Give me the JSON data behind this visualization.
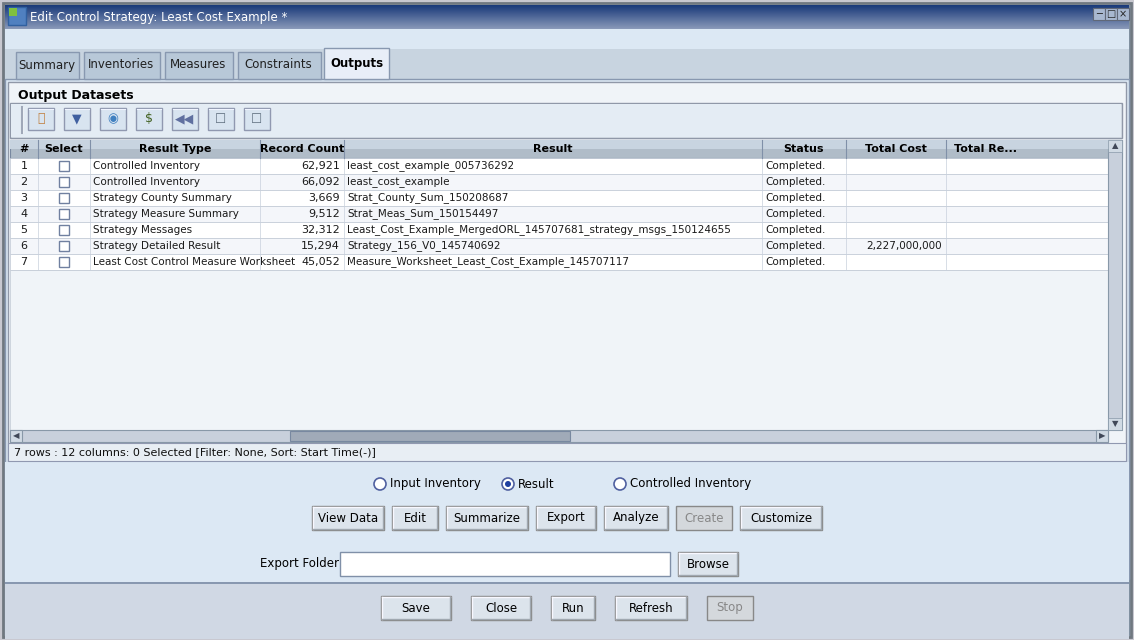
{
  "title_bar": "Edit Control Strategy: Least Cost Example *",
  "tabs": [
    "Summary",
    "Inventories",
    "Measures",
    "Constraints",
    "Outputs"
  ],
  "active_tab": "Outputs",
  "section_title": "Output Datasets",
  "table_headers": [
    "#",
    "Select",
    "Result Type",
    "Record Count",
    "Result",
    "Status",
    "Total Cost",
    "Total Re..."
  ],
  "table_rows": [
    [
      "1",
      "",
      "Controlled Inventory",
      "62,921",
      "least_cost_example_005736292",
      "Completed.",
      "",
      ""
    ],
    [
      "2",
      "",
      "Controlled Inventory",
      "66,092",
      "least_cost_example",
      "Completed.",
      "",
      ""
    ],
    [
      "3",
      "",
      "Strategy County Summary",
      "3,669",
      "Strat_County_Sum_150208687",
      "Completed.",
      "",
      ""
    ],
    [
      "4",
      "",
      "Strategy Measure Summary",
      "9,512",
      "Strat_Meas_Sum_150154497",
      "Completed.",
      "",
      ""
    ],
    [
      "5",
      "",
      "Strategy Messages",
      "32,312",
      "Least_Cost_Example_MergedORL_145707681_strategy_msgs_150124655",
      "Completed.",
      "",
      ""
    ],
    [
      "6",
      "",
      "Strategy Detailed Result",
      "15,294",
      "Strategy_156_V0_145740692",
      "Completed.",
      "2,227,000,000",
      ""
    ],
    [
      "7",
      "",
      "Least Cost Control Measure Worksheet",
      "45,052",
      "Measure_Worksheet_Least_Cost_Example_145707117",
      "Completed.",
      "",
      ""
    ]
  ],
  "status_bar": "7 rows : 12 columns: 0 Selected [Filter: None, Sort: Start Time(-)]",
  "radio_options": [
    "Input Inventory",
    "Result",
    "Controlled Inventory"
  ],
  "radio_selected": 1,
  "buttons_row1": [
    "View Data",
    "Edit",
    "Summarize",
    "Export",
    "Analyze",
    "Create",
    "Customize"
  ],
  "buttons_disabled": [
    "Create"
  ],
  "export_folder_label": "Export Folder:",
  "buttons_row2": [
    "Save",
    "Close",
    "Run",
    "Refresh",
    "Stop"
  ],
  "buttons_row2_disabled": [
    "Stop"
  ],
  "outer_bg": "#c8c8d0",
  "win_bg": "#e8e8f0",
  "title_bg_left": "#1a3a7a",
  "title_bg_right": "#8898b8",
  "tab_active_bg": "#e8eef8",
  "tab_inactive_bg": "#c8d0dc",
  "table_header_bg": "#c0ccd8",
  "table_row_even": "#ffffff",
  "table_row_odd": "#f4f6fa",
  "inner_panel_bg": "#dce4ec",
  "toolbar_bg": "#e0e8f0",
  "scroll_track": "#c8d0dc",
  "scroll_thumb": "#8898a8",
  "bottom_bar_bg": "#d0d8e0",
  "status_bg": "#e8eef4"
}
